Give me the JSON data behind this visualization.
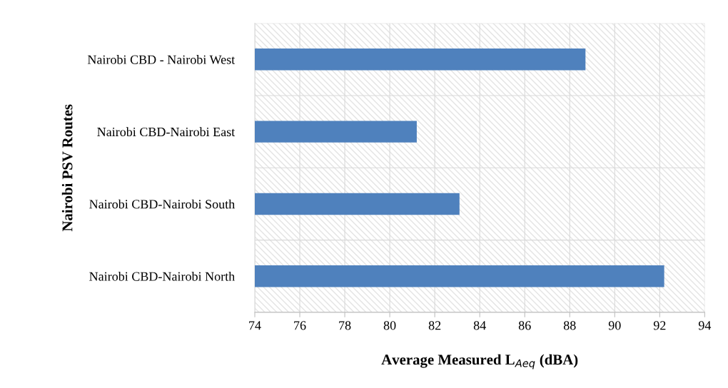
{
  "chart_data": {
    "type": "bar",
    "orientation": "horizontal",
    "categories": [
      "Nairobi CBD - Nairobi West",
      "Nairobi CBD-Nairobi East",
      "Nairobi CBD-Nairobi South",
      "Nairobi CBD-Nairobi North"
    ],
    "values": [
      88.7,
      81.2,
      83.1,
      92.2
    ],
    "color": "#4f81bd",
    "xlim": [
      74,
      94
    ],
    "xticks": [
      74,
      76,
      78,
      80,
      82,
      84,
      86,
      88,
      90,
      92,
      94
    ],
    "xlabel": "Average Measured L$_{Aeq}$ (dBA)",
    "ylabel": "Nairobi PSV Routes",
    "grid": true
  }
}
